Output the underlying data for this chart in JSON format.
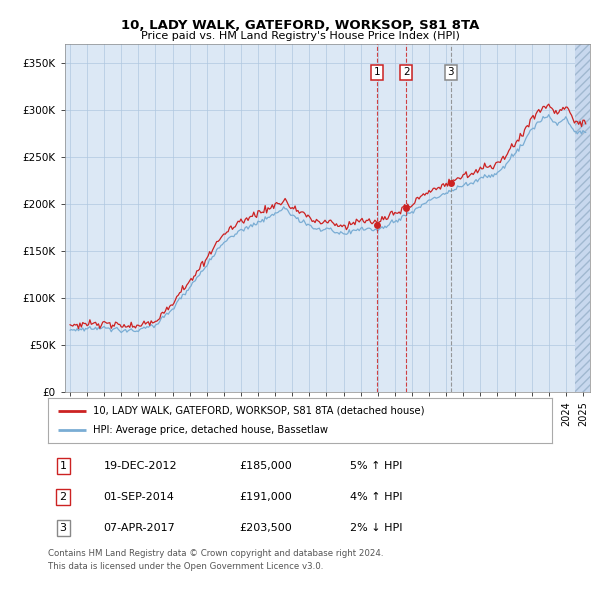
{
  "title": "10, LADY WALK, GATEFORD, WORKSOP, S81 8TA",
  "subtitle": "Price paid vs. HM Land Registry's House Price Index (HPI)",
  "ylabel_ticks": [
    "£0",
    "£50K",
    "£100K",
    "£150K",
    "£200K",
    "£250K",
    "£300K",
    "£350K"
  ],
  "ytick_values": [
    0,
    50000,
    100000,
    150000,
    200000,
    250000,
    300000,
    350000
  ],
  "ylim": [
    0,
    370000
  ],
  "transactions": [
    {
      "num": 1,
      "date": "19-DEC-2012",
      "price": 185000,
      "pct": "5%",
      "dir": "↑",
      "year": 2012.97
    },
    {
      "num": 2,
      "date": "01-SEP-2014",
      "price": 191000,
      "pct": "4%",
      "dir": "↑",
      "year": 2014.67
    },
    {
      "num": 3,
      "date": "07-APR-2017",
      "price": 203500,
      "pct": "2%",
      "dir": "↓",
      "year": 2017.27
    }
  ],
  "legend_label_red": "10, LADY WALK, GATEFORD, WORKSOP, S81 8TA (detached house)",
  "legend_label_blue": "HPI: Average price, detached house, Bassetlaw",
  "footer1": "Contains HM Land Registry data © Crown copyright and database right 2024.",
  "footer2": "This data is licensed under the Open Government Licence v3.0.",
  "plot_bg": "#dce8f5",
  "fig_bg": "#ffffff",
  "red_color": "#cc2222",
  "blue_color": "#7aadd4",
  "hatch_color": "#c8d8ee",
  "grid_color": "#b0c8e0",
  "label_box_num1_color": "#cc2222",
  "label_box_num2_color": "#cc2222",
  "label_box_num3_color": "#888888",
  "vline1_color": "#cc2222",
  "vline2_color": "#cc2222",
  "vline3_color": "#888888"
}
